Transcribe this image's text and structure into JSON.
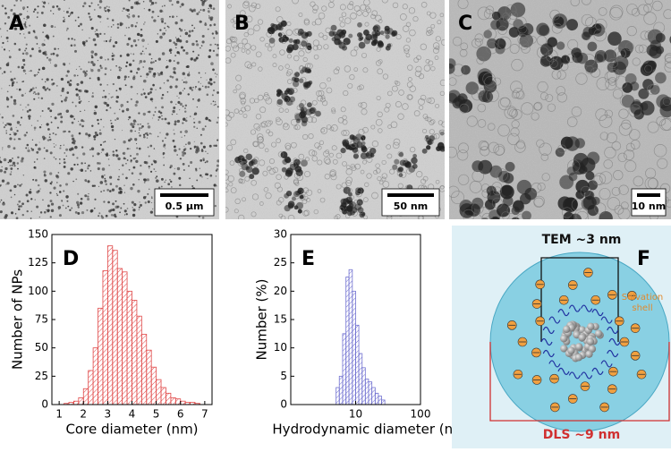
{
  "images": [
    {
      "label": "A",
      "scale_bar": "0.5 µm"
    },
    {
      "label": "B",
      "scale_bar": "50 nm"
    },
    {
      "label": "C",
      "scale_bar": "10 nm"
    }
  ],
  "chart_data": [
    {
      "type": "histogram",
      "label": "D",
      "x_label": "Core diameter (nm)",
      "y_label": "Number of NPs",
      "bins": [
        1.2,
        1.4,
        1.6,
        1.8,
        2.0,
        2.2,
        2.4,
        2.6,
        2.8,
        3.0,
        3.2,
        3.4,
        3.6,
        3.8,
        4.0,
        4.2,
        4.4,
        4.6,
        4.8,
        5.0,
        5.2,
        5.4,
        5.6,
        5.8,
        6.0,
        6.2,
        6.4,
        6.6,
        6.8
      ],
      "values": [
        1,
        2,
        3,
        6,
        14,
        30,
        50,
        85,
        118,
        140,
        136,
        120,
        117,
        100,
        92,
        78,
        62,
        48,
        33,
        22,
        15,
        10,
        6,
        5,
        3,
        2,
        2,
        1
      ],
      "color": "#e04848",
      "xlim": [
        0.7,
        7.3
      ],
      "xticks": [
        1,
        2,
        3,
        4,
        5,
        6,
        7
      ],
      "ylim": [
        0,
        150
      ],
      "yticks": [
        0,
        25,
        50,
        75,
        100,
        125,
        150
      ]
    },
    {
      "type": "histogram",
      "label": "E",
      "x_label": "Hydrodynamic diameter (nm)",
      "y_label": "Number (%)",
      "log_x": true,
      "bins": [
        5.0,
        5.6,
        6.3,
        7.1,
        7.9,
        8.9,
        10,
        11.2,
        12.6,
        14.1,
        15.8,
        17.8,
        20,
        22.4,
        25.1,
        28.2
      ],
      "values": [
        3,
        5,
        12.5,
        22.5,
        23.8,
        20,
        14,
        9,
        6.5,
        4.5,
        4,
        3,
        2,
        1.5,
        0.8
      ],
      "color": "#7070d0",
      "xlim": [
        1,
        100
      ],
      "xticks": [
        10,
        100
      ],
      "ylim": [
        0,
        30
      ],
      "yticks": [
        0,
        5,
        10,
        15,
        20,
        25,
        30
      ]
    }
  ],
  "schematic": {
    "label": "F",
    "tem": "TEM ~3 nm",
    "dls": "DLS ~9 nm",
    "shell": [
      "Solvation",
      "shell"
    ]
  }
}
